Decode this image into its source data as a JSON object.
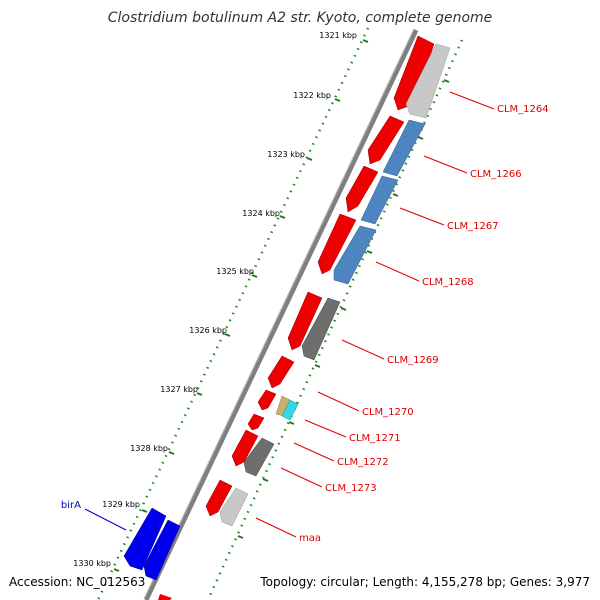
{
  "title": "Clostridium botulinum A2 str. Kyoto, complete genome",
  "footer": {
    "accession": "Accession: NC_012563",
    "topology": "Topology: circular; Length: 4,155,278 bp; Genes: 3,977"
  },
  "kbp_ticks": [
    "1321 kbp",
    "1322 kbp",
    "1323 kbp",
    "1324 kbp",
    "1325 kbp",
    "1326 kbp",
    "1327 kbp",
    "1328 kbp",
    "1329 kbp",
    "1330 kbp"
  ],
  "gene_labels": [
    {
      "text": "CLM_1264",
      "color": "#dd0000"
    },
    {
      "text": "CLM_1266",
      "color": "#dd0000"
    },
    {
      "text": "CLM_1267",
      "color": "#dd0000"
    },
    {
      "text": "CLM_1268",
      "color": "#dd0000"
    },
    {
      "text": "CLM_1269",
      "color": "#dd0000"
    },
    {
      "text": "CLM_1270",
      "color": "#dd0000"
    },
    {
      "text": "CLM_1271",
      "color": "#dd0000"
    },
    {
      "text": "CLM_1272",
      "color": "#dd0000"
    },
    {
      "text": "CLM_1273",
      "color": "#dd0000"
    },
    {
      "text": "maa",
      "color": "#dd0000"
    },
    {
      "text": "birA",
      "color": "#0000cc"
    }
  ]
}
